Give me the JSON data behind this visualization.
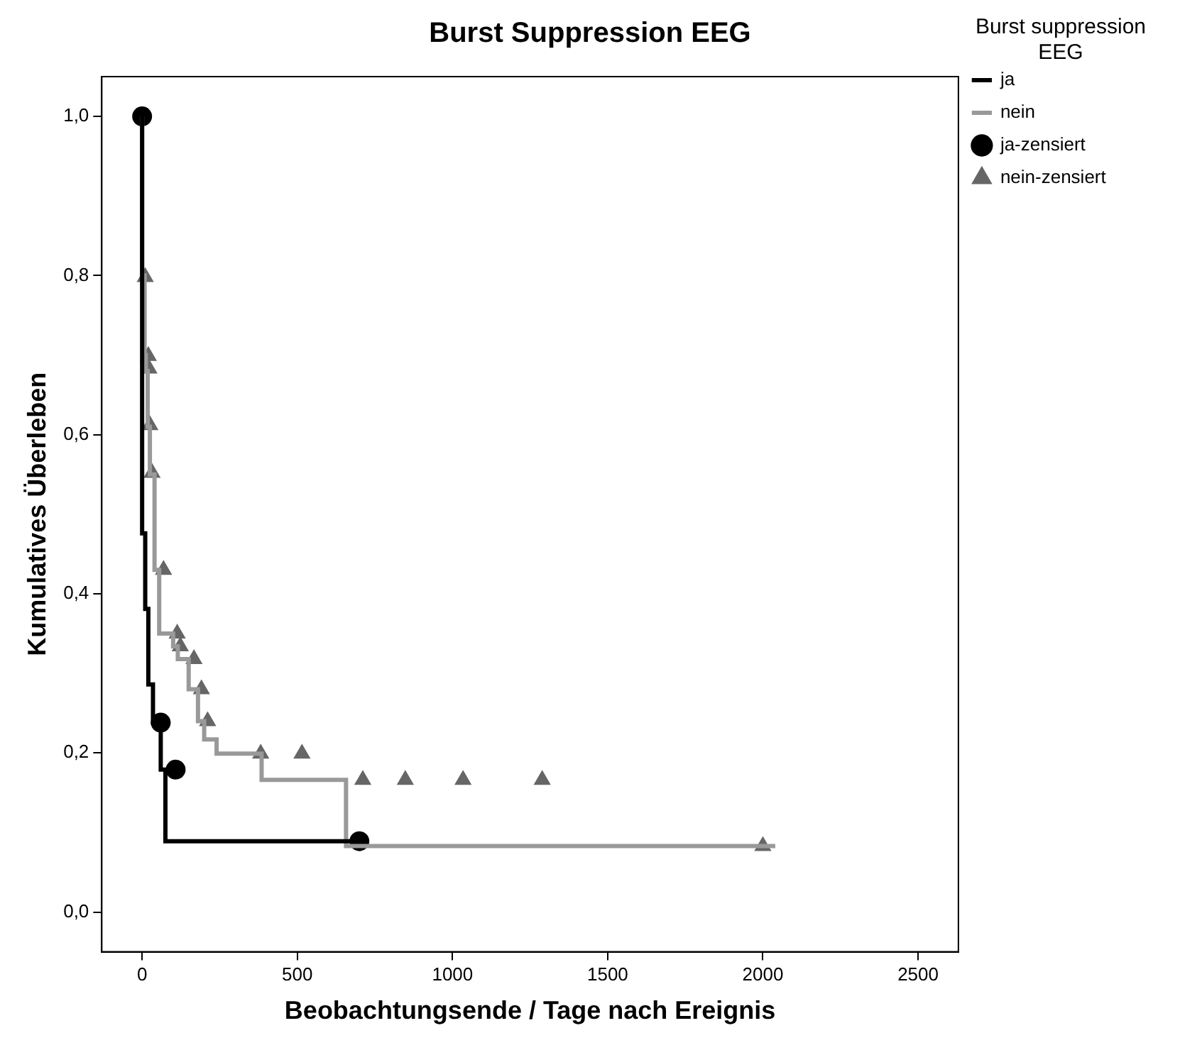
{
  "chart_data": {
    "type": "step",
    "title": "Burst Suppression EEG",
    "xlabel": "Beobachtungsende / Tage nach Ereignis",
    "ylabel": "Kumulatives Überleben",
    "legend_title": "Burst suppression EEG",
    "legend": "right",
    "grid": false,
    "xlim": [
      -130,
      2630
    ],
    "xticks": [
      0,
      500,
      1000,
      1500,
      2000,
      2500
    ],
    "ylim": [
      -0.05,
      1.05
    ],
    "yticks": [
      {
        "value": 0,
        "label": "0,0"
      },
      {
        "value": 0.2,
        "label": "0,2"
      },
      {
        "value": 0.4,
        "label": "0,4"
      },
      {
        "value": 0.6,
        "label": "0,6"
      },
      {
        "value": 0.8,
        "label": "0,8"
      },
      {
        "value": 1,
        "label": "1,0"
      }
    ],
    "series": [
      {
        "name": "ja",
        "color": "#000000",
        "marker": "none",
        "x": [
          0,
          10,
          20,
          35,
          60,
          75,
          152,
          700
        ],
        "values": [
          1.0,
          0.476,
          0.381,
          0.286,
          0.238,
          0.179,
          0.089,
          0.089
        ]
      },
      {
        "name": "nein",
        "color": "#999999",
        "marker": "none",
        "x": [
          0,
          8,
          12,
          18,
          25,
          40,
          55,
          100,
          115,
          150,
          180,
          200,
          240,
          385,
          657,
          1700,
          2040
        ],
        "values": [
          1.0,
          0.8,
          0.7,
          0.68,
          0.61,
          0.55,
          0.43,
          0.35,
          0.334,
          0.318,
          0.28,
          0.24,
          0.217,
          0.199,
          0.166,
          0.083,
          0.083
        ]
      },
      {
        "name": "ja-zensiert",
        "type": "scatter",
        "color": "#000000",
        "marker": "circle",
        "x": [
          0,
          60,
          108,
          700
        ],
        "values": [
          1.0,
          0.238,
          0.179,
          0.089
        ]
      },
      {
        "name": "nein-zensiert",
        "type": "scatter",
        "color": "#666666",
        "marker": "triangle",
        "x": [
          10,
          20,
          22,
          25,
          32,
          69,
          113,
          123,
          167,
          191,
          211,
          382,
          515,
          711,
          848,
          1034,
          1289,
          2000
        ],
        "values": [
          0.798,
          0.699,
          0.683,
          0.612,
          0.552,
          0.43,
          0.35,
          0.334,
          0.318,
          0.28,
          0.24,
          0.199,
          0.199,
          0.166,
          0.166,
          0.166,
          0.166,
          0.083
        ]
      }
    ]
  }
}
